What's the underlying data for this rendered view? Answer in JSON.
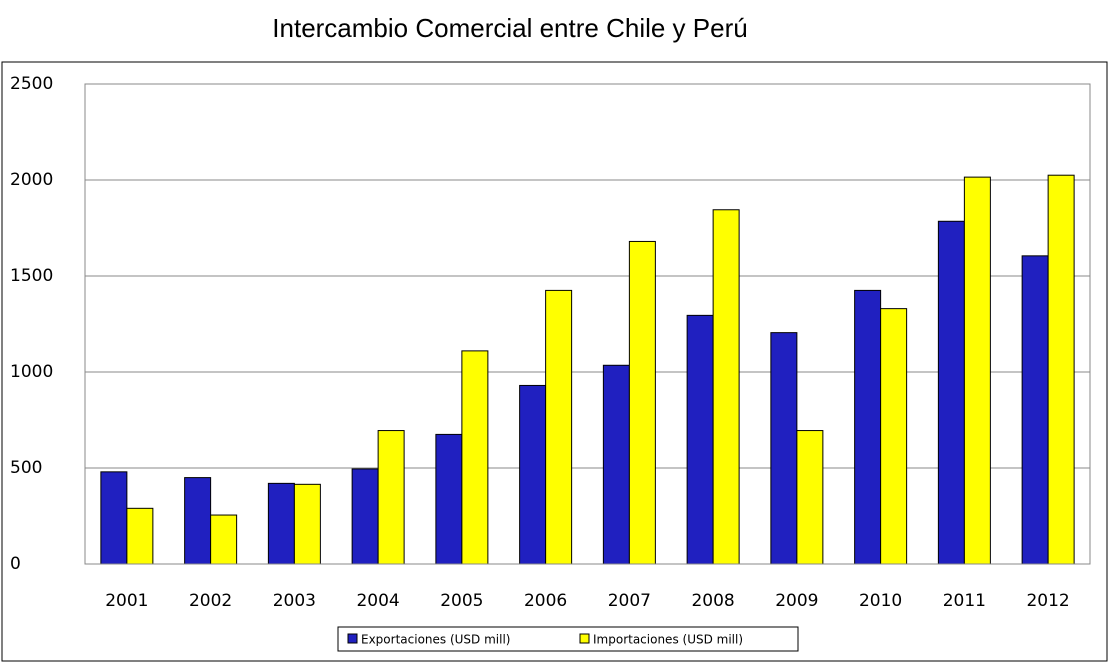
{
  "chart_data": {
    "type": "bar",
    "title": "Intercambio Comercial entre Chile y Perú",
    "categories": [
      "2001",
      "2002",
      "2003",
      "2004",
      "2005",
      "2006",
      "2007",
      "2008",
      "2009",
      "2010",
      "2011",
      "2012"
    ],
    "series": [
      {
        "name": "Exportaciones (USD mill)",
        "color": "#2020c0",
        "values": [
          480,
          450,
          420,
          495,
          675,
          930,
          1035,
          1295,
          1205,
          1425,
          1785,
          1605
        ]
      },
      {
        "name": "Importaciones (USD mill)",
        "color": "#ffff00",
        "values": [
          290,
          255,
          415,
          695,
          1110,
          1425,
          1680,
          1845,
          695,
          1330,
          2015,
          2025
        ]
      }
    ],
    "ylim": [
      0,
      2500
    ],
    "yticks": [
      0,
      500,
      1000,
      1500,
      2000,
      2500
    ],
    "grid": true,
    "legend": "bottom"
  }
}
